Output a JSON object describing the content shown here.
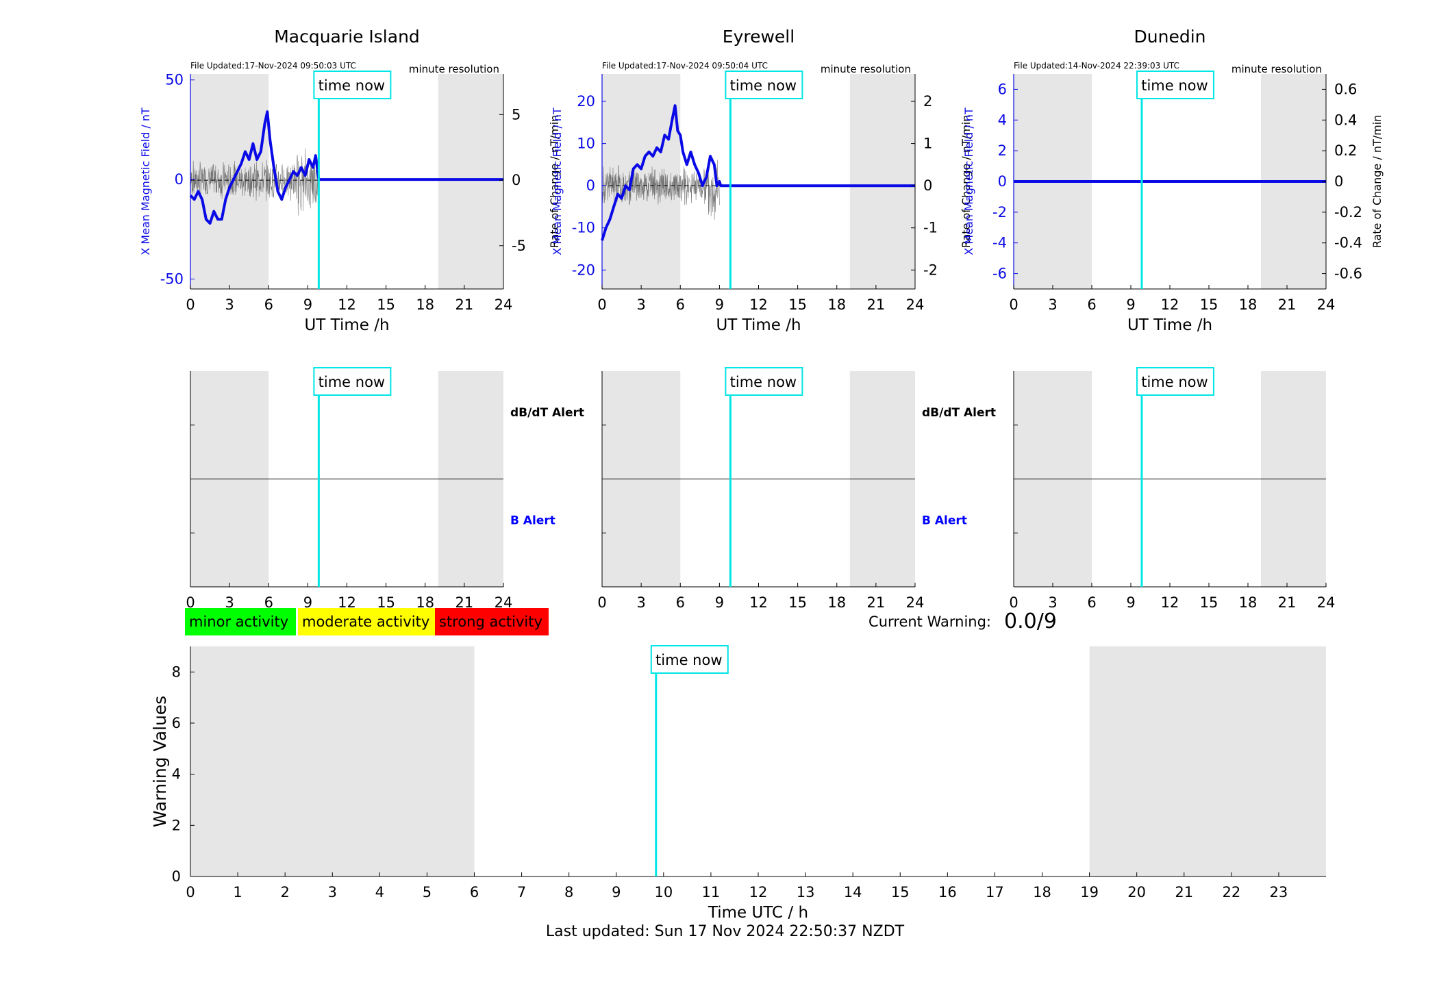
{
  "colors": {
    "night_shade": "#e6e6e6",
    "field_line": "#0a0ae6",
    "rate_line": "#555555",
    "now_line": "#00e5e5",
    "b_alert_label": "#0000ff",
    "minor": "#00ff00",
    "moderate": "#ffff00",
    "strong": "#ff0000"
  },
  "time_now_label": "time now",
  "time_now_hour": 9.84,
  "stations": [
    {
      "name": "Macquarie Island",
      "file_updated": "File Updated:17-Nov-2024 09:50:03 UTC",
      "resolution": "minute resolution",
      "left_ylabel": "X Mean Magnetic Field / nT",
      "right_ylabel": "Rate of Change / nT/min",
      "xlabel": "UT Time /h",
      "left_ylim": [
        -55,
        53
      ],
      "left_ticks": [
        "-50",
        "0",
        "50"
      ],
      "left_tick_values": [
        -50,
        0,
        50
      ],
      "right_ylim": [
        -8.3,
        8.1
      ],
      "right_ticks": [
        "-5",
        "0",
        "5"
      ],
      "right_tick_values": [
        -5,
        0,
        5
      ],
      "data_end_hour": 9.84
    },
    {
      "name": "Eyrewell",
      "file_updated": "File Updated:17-Nov-2024 09:50:04 UTC",
      "resolution": "minute resolution",
      "left_ylabel": "X Mean Magnetic Field / nT",
      "right_ylabel": "Rate of Change / nT/min",
      "xlabel": "UT Time /h",
      "left_ylim": [
        -24.5,
        26.5
      ],
      "left_ticks": [
        "-20",
        "-10",
        "0",
        "10",
        "20"
      ],
      "left_tick_values": [
        -20,
        -10,
        0,
        10,
        20
      ],
      "right_ylim": [
        -2.45,
        2.65
      ],
      "right_ticks": [
        "-2",
        "-1",
        "0",
        "1",
        "2"
      ],
      "right_tick_values": [
        -2,
        -1,
        0,
        1,
        2
      ],
      "data_end_hour": 9.0
    },
    {
      "name": "Dunedin",
      "file_updated": "File Updated:14-Nov-2024 22:39:03 UTC",
      "resolution": "minute resolution",
      "left_ylabel": "X Mean Magnetic Field / nT",
      "right_ylabel": "Rate of Change / nT/min",
      "xlabel": "UT Time /h",
      "left_ylim": [
        -7,
        7
      ],
      "left_ticks": [
        "-6",
        "-4",
        "-2",
        "0",
        "2",
        "4",
        "6"
      ],
      "left_tick_values": [
        -6,
        -4,
        -2,
        0,
        2,
        4,
        6
      ],
      "right_ylim": [
        -0.7,
        0.7
      ],
      "right_ticks": [
        "-0.6",
        "-0.4",
        "-0.2",
        "0",
        "0.2",
        "0.4",
        "0.6"
      ],
      "right_tick_values": [
        -0.6,
        -0.4,
        -0.2,
        0,
        0.2,
        0.4,
        0.6
      ],
      "data_end_hour": 0
    }
  ],
  "top_x_ticks": [
    "0",
    "3",
    "6",
    "9",
    "12",
    "15",
    "18",
    "21",
    "24"
  ],
  "alert_labels": {
    "db_dt": "dB/dT Alert",
    "b": "B Alert"
  },
  "night_bands": [
    [
      0,
      6
    ],
    [
      19,
      24
    ]
  ],
  "legend": [
    {
      "key": "minor",
      "label": "minor activity"
    },
    {
      "key": "moderate",
      "label": "moderate activity"
    },
    {
      "key": "strong",
      "label": "strong activity"
    }
  ],
  "current_warning_label": "Current Warning:",
  "current_warning_value": "0.0/9",
  "chart_data": {
    "type": "bar",
    "ylabel": "Warning Values",
    "xlabel": "Time UTC / h",
    "xlim": [
      0,
      24
    ],
    "ylim": [
      0,
      9
    ],
    "y_ticks": [
      "0",
      "2",
      "4",
      "6",
      "8"
    ],
    "y_tick_values": [
      0,
      2,
      4,
      6,
      8
    ],
    "x_ticks": [
      "0",
      "1",
      "2",
      "3",
      "4",
      "5",
      "6",
      "7",
      "8",
      "9",
      "10",
      "11",
      "12",
      "13",
      "14",
      "15",
      "16",
      "17",
      "18",
      "19",
      "20",
      "21",
      "22",
      "23"
    ],
    "values": [],
    "grid": false
  },
  "field_series": {
    "macquarie_x": [
      [
        0,
        -8
      ],
      [
        0.3,
        -10
      ],
      [
        0.6,
        -6
      ],
      [
        0.9,
        -10
      ],
      [
        1.2,
        -20
      ],
      [
        1.5,
        -22
      ],
      [
        1.8,
        -16
      ],
      [
        2.1,
        -20
      ],
      [
        2.4,
        -20
      ],
      [
        2.7,
        -10
      ],
      [
        3.0,
        -4
      ],
      [
        3.3,
        0
      ],
      [
        3.6,
        4
      ],
      [
        3.9,
        8
      ],
      [
        4.2,
        14
      ],
      [
        4.5,
        10
      ],
      [
        4.8,
        18
      ],
      [
        5.1,
        10
      ],
      [
        5.4,
        14
      ],
      [
        5.7,
        28
      ],
      [
        5.9,
        34
      ],
      [
        6.1,
        20
      ],
      [
        6.4,
        6
      ],
      [
        6.7,
        -6
      ],
      [
        7.0,
        -10
      ],
      [
        7.3,
        -4
      ],
      [
        7.6,
        0
      ],
      [
        7.9,
        4
      ],
      [
        8.2,
        2
      ],
      [
        8.5,
        6
      ],
      [
        8.8,
        2
      ],
      [
        9.1,
        10
      ],
      [
        9.4,
        6
      ],
      [
        9.6,
        12
      ],
      [
        9.84,
        0
      ],
      [
        24,
        0
      ]
    ],
    "eyrewell_x": [
      [
        0,
        -13
      ],
      [
        0.3,
        -10
      ],
      [
        0.6,
        -8
      ],
      [
        0.9,
        -5
      ],
      [
        1.2,
        -2
      ],
      [
        1.5,
        -3
      ],
      [
        1.8,
        0
      ],
      [
        2.1,
        -1
      ],
      [
        2.4,
        4
      ],
      [
        2.7,
        5
      ],
      [
        3.0,
        4
      ],
      [
        3.3,
        7
      ],
      [
        3.6,
        8
      ],
      [
        3.9,
        7
      ],
      [
        4.2,
        9
      ],
      [
        4.5,
        8
      ],
      [
        4.8,
        12
      ],
      [
        5.1,
        11
      ],
      [
        5.4,
        16
      ],
      [
        5.6,
        19
      ],
      [
        5.8,
        13
      ],
      [
        6.0,
        12
      ],
      [
        6.2,
        8
      ],
      [
        6.5,
        5
      ],
      [
        6.8,
        8
      ],
      [
        7.1,
        5
      ],
      [
        7.4,
        3
      ],
      [
        7.7,
        0
      ],
      [
        8.0,
        2
      ],
      [
        8.3,
        7
      ],
      [
        8.6,
        5
      ],
      [
        8.8,
        0
      ],
      [
        9.0,
        1
      ],
      [
        9.1,
        0
      ],
      [
        24,
        0
      ]
    ],
    "dunedin_x": [
      [
        0,
        0
      ],
      [
        24,
        0
      ]
    ]
  },
  "footer": "Last updated: Sun 17 Nov 2024 22:50:37 NZDT"
}
